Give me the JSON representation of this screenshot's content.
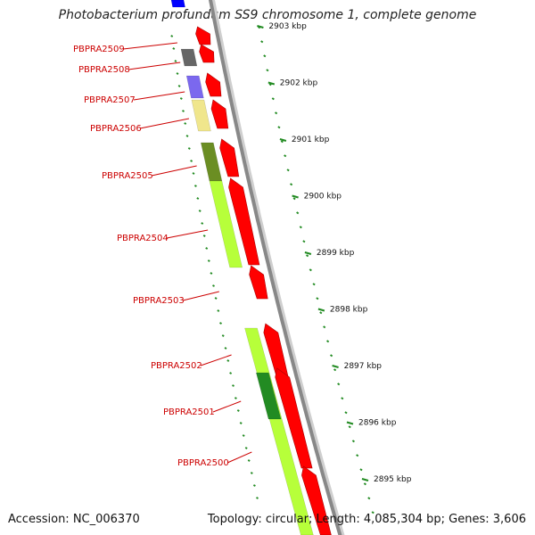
{
  "title": "Photobacterium profundum SS9 chromosome 1, complete genome",
  "accession": "Accession: NC_006370",
  "summary": "Topology: circular; Length: 4,085,304 bp; Genes: 3,606",
  "colors": {
    "gene_arrow": "#ff0000",
    "backbone": "#888888",
    "ruler": "#228b22",
    "label": "#cc0000",
    "cog_lime": "#b7ff3a",
    "cog_olive": "#6b8e23",
    "cog_purple": "#7b68ee",
    "cog_wheat": "#f0e68c",
    "cog_gray": "#666666",
    "cog_green": "#228b22",
    "cog_blue": "#0000ff"
  },
  "ruler_labels": [
    "2903 kbp",
    "2902 kbp",
    "2901 kbp",
    "2900 kbp",
    "2899 kbp",
    "2898 kbp",
    "2897 kbp",
    "2896 kbp",
    "2895 kbp"
  ],
  "genes": [
    {
      "label": "PBPRA2509"
    },
    {
      "label": "PBPRA2508"
    },
    {
      "label": "PBPRA2507"
    },
    {
      "label": "PBPRA2506"
    },
    {
      "label": "PBPRA2505"
    },
    {
      "label": "PBPRA2504"
    },
    {
      "label": "PBPRA2503"
    },
    {
      "label": "PBPRA2502"
    },
    {
      "label": "PBPRA2501"
    },
    {
      "label": "PBPRA2500"
    }
  ]
}
